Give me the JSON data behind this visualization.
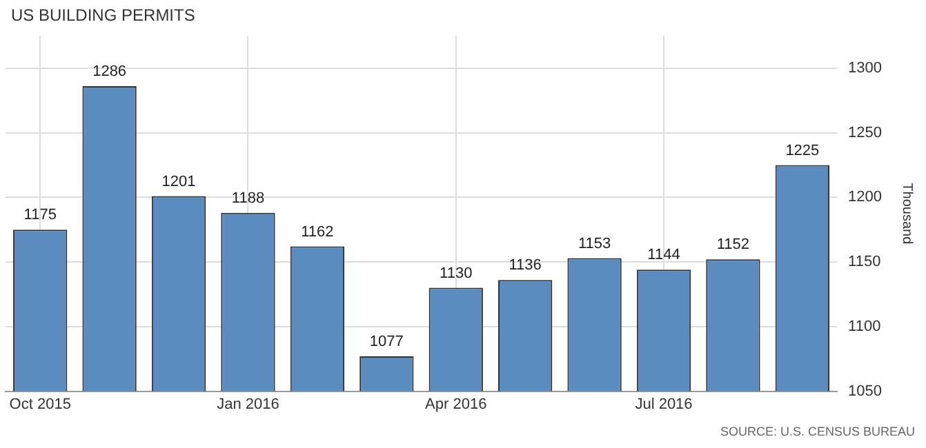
{
  "chart_data": {
    "type": "bar",
    "title": "US BUILDING PERMITS",
    "ylabel": "Thousand",
    "categories": [
      "Oct 2015",
      null,
      null,
      "Jan 2016",
      null,
      null,
      "Apr 2016",
      null,
      null,
      "Jul 2016",
      null,
      null
    ],
    "values": [
      1175,
      1286,
      1201,
      1188,
      1162,
      1077,
      1130,
      1136,
      1153,
      1144,
      1152,
      1225
    ],
    "color": "#5b8cc0",
    "ylim": [
      1050,
      1325
    ],
    "yticks": [
      1050,
      1100,
      1150,
      1200,
      1250,
      1300
    ],
    "grid": true,
    "data_labels": true,
    "annotations": [
      "SOURCE: U.S. CENSUS BUREAU"
    ]
  }
}
